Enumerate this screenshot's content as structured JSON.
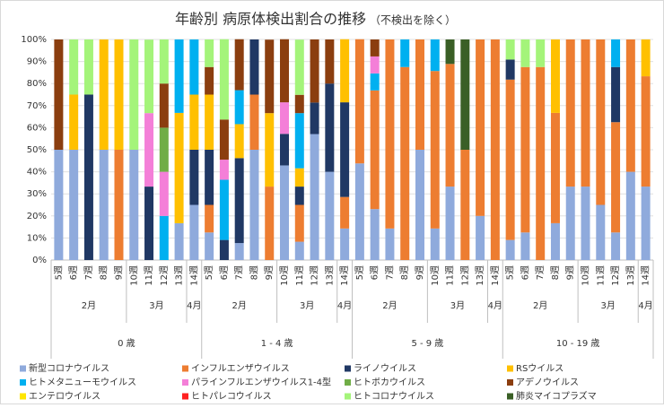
{
  "chart_data": {
    "type": "stacked-bar",
    "title": "年齢別 病原体検出割合の推移",
    "subtitle": "（不検出を除く）",
    "ylim": [
      0,
      100
    ],
    "yticks": [
      {
        "value": 0,
        "label": "0%"
      },
      {
        "value": 10,
        "label": "10%"
      },
      {
        "value": 20,
        "label": "20%"
      },
      {
        "value": 30,
        "label": "30%"
      },
      {
        "value": 40,
        "label": "40%"
      },
      {
        "value": 50,
        "label": "50%"
      },
      {
        "value": 60,
        "label": "60%"
      },
      {
        "value": 70,
        "label": "70%"
      },
      {
        "value": 80,
        "label": "80%"
      },
      {
        "value": 90,
        "label": "90%"
      },
      {
        "value": 100,
        "label": "100%"
      }
    ],
    "groups": [
      {
        "name": "0 歳",
        "months": [
          {
            "name": "2月",
            "weeks": [
              "5週",
              "6週",
              "7週",
              "8週",
              "9週"
            ]
          },
          {
            "name": "3月",
            "weeks": [
              "10週",
              "11週",
              "12週",
              "13週"
            ]
          },
          {
            "name": "4月",
            "weeks": [
              "14週"
            ]
          }
        ]
      },
      {
        "name": "1 - 4 歳",
        "months": [
          {
            "name": "2月",
            "weeks": [
              "5週",
              "6週",
              "7週",
              "8週",
              "9週"
            ]
          },
          {
            "name": "3月",
            "weeks": [
              "10週",
              "11週",
              "12週",
              "13週"
            ]
          },
          {
            "name": "4月",
            "weeks": [
              "14週"
            ]
          }
        ]
      },
      {
        "name": "5 - 9 歳",
        "months": [
          {
            "name": "2月",
            "weeks": [
              "5週",
              "6週",
              "7週",
              "8週",
              "9週"
            ]
          },
          {
            "name": "3月",
            "weeks": [
              "10週",
              "11週",
              "12週",
              "13週"
            ]
          },
          {
            "name": "4月",
            "weeks": [
              "14週"
            ]
          }
        ]
      },
      {
        "name": "10 - 19 歳",
        "months": [
          {
            "name": "2月",
            "weeks": [
              "5週",
              "6週",
              "7週",
              "8週",
              "9週"
            ]
          },
          {
            "name": "3月",
            "weeks": [
              "10週",
              "11週",
              "12週",
              "13週"
            ]
          },
          {
            "name": "4月",
            "weeks": [
              "14週"
            ]
          }
        ]
      }
    ],
    "series": [
      {
        "name": "新型コロナウイルス",
        "color": "#8faadc",
        "values": [
          50,
          50,
          0,
          50,
          0,
          50,
          0,
          0,
          16.7,
          25,
          12.5,
          0,
          7.7,
          50,
          0,
          42.9,
          8.3,
          57.1,
          40,
          14.3,
          43.8,
          23.1,
          14.3,
          0,
          50,
          14.3,
          33.3,
          0,
          20,
          0,
          9.1,
          12.5,
          0,
          16.7,
          33.3,
          33.3,
          25,
          12.5,
          40,
          33.3
        ]
      },
      {
        "name": "インフルエンザウイルス",
        "color": "#ed7d31",
        "values": [
          0,
          0,
          0,
          0,
          50,
          0,
          0,
          0,
          0,
          0,
          12.5,
          0,
          0,
          25,
          33.3,
          0,
          16.7,
          0,
          0,
          14.3,
          56.3,
          53.8,
          85.7,
          87.5,
          50,
          71.4,
          55.6,
          50,
          80,
          100,
          72.7,
          75,
          87.5,
          50,
          66.7,
          66.7,
          75,
          50,
          60,
          50
        ]
      },
      {
        "name": "ライノウイルス",
        "color": "#203864",
        "values": [
          0,
          0,
          75,
          0,
          0,
          0,
          33.3,
          0,
          0,
          25,
          25,
          9.1,
          38.5,
          25,
          0,
          14.3,
          8.3,
          14.3,
          40,
          42.9,
          0,
          0,
          0,
          0,
          0,
          0,
          0,
          0,
          0,
          0,
          9.1,
          0,
          0,
          0,
          0,
          0,
          0,
          25,
          0,
          0
        ]
      },
      {
        "name": "RSウイルス",
        "color": "#ffc000",
        "values": [
          0,
          25,
          0,
          50,
          50,
          0,
          0,
          0,
          50,
          25,
          25,
          0,
          15.4,
          0,
          33.3,
          0,
          8.3,
          0,
          0,
          28.6,
          0,
          0,
          0,
          0,
          0,
          0,
          0,
          0,
          0,
          0,
          0,
          0,
          0,
          33.3,
          0,
          0,
          0,
          0,
          0,
          16.7
        ]
      },
      {
        "name": "ヒトメタニューモウイルス",
        "color": "#00b0f0",
        "values": [
          0,
          0,
          0,
          0,
          0,
          0,
          0,
          20,
          33.3,
          25,
          0,
          27.3,
          15.4,
          0,
          0,
          0,
          25,
          0,
          0,
          0,
          0,
          7.7,
          0,
          12.5,
          0,
          14.3,
          0,
          0,
          0,
          0,
          0,
          0,
          0,
          0,
          0,
          0,
          0,
          12.5,
          0,
          0
        ]
      },
      {
        "name": "パラインフルエンザウイルス1-4型",
        "color": "#f47fd8",
        "values": [
          0,
          0,
          0,
          0,
          0,
          0,
          33.3,
          20,
          0,
          0,
          0,
          9.1,
          0,
          0,
          0,
          14.3,
          0,
          0,
          0,
          0,
          0,
          7.7,
          0,
          0,
          0,
          0,
          0,
          0,
          0,
          0,
          0,
          0,
          0,
          0,
          0,
          0,
          0,
          0,
          0,
          0
        ]
      },
      {
        "name": "ヒトボカウイルス",
        "color": "#70ad47",
        "values": [
          0,
          0,
          0,
          0,
          0,
          0,
          0,
          20,
          0,
          0,
          0,
          0,
          0,
          0,
          0,
          0,
          0,
          0,
          0,
          0,
          0,
          0,
          0,
          0,
          0,
          0,
          0,
          0,
          0,
          0,
          0,
          0,
          0,
          0,
          0,
          0,
          0,
          0,
          0,
          0
        ]
      },
      {
        "name": "アデノウイルス",
        "color": "#8b3e0f",
        "values": [
          50,
          0,
          0,
          0,
          0,
          0,
          0,
          20,
          0,
          0,
          12.5,
          18.2,
          23.1,
          0,
          33.3,
          28.6,
          8.3,
          28.6,
          20,
          0,
          0,
          7.7,
          0,
          0,
          0,
          0,
          0,
          0,
          0,
          0,
          0,
          0,
          0,
          0,
          0,
          0,
          0,
          0,
          0,
          0
        ]
      },
      {
        "name": "エンテロウイルス",
        "color": "#ffe600",
        "values": [
          0,
          0,
          0,
          0,
          0,
          0,
          0,
          0,
          0,
          0,
          0,
          0,
          0,
          0,
          0,
          0,
          0,
          0,
          0,
          0,
          0,
          0,
          0,
          0,
          0,
          0,
          0,
          0,
          0,
          0,
          0,
          0,
          0,
          0,
          0,
          0,
          0,
          0,
          0,
          0
        ]
      },
      {
        "name": "ヒトパレコウイルス",
        "color": "#ff2020",
        "values": [
          0,
          0,
          0,
          0,
          0,
          0,
          0,
          0,
          0,
          0,
          0,
          0,
          0,
          0,
          0,
          0,
          0,
          0,
          0,
          0,
          0,
          0,
          0,
          0,
          0,
          0,
          0,
          0,
          0,
          0,
          0,
          0,
          0,
          0,
          0,
          0,
          0,
          0,
          0,
          0
        ]
      },
      {
        "name": "ヒトコロナウイルス",
        "color": "#a4f47a",
        "values": [
          0,
          25,
          25,
          0,
          0,
          50,
          33.3,
          20,
          0,
          0,
          12.5,
          36.4,
          0,
          0,
          0,
          0,
          25,
          0,
          0,
          0,
          0,
          0,
          0,
          0,
          0,
          0,
          0,
          0,
          0,
          0,
          9.1,
          12.5,
          12.5,
          0,
          0,
          0,
          0,
          0,
          0,
          0
        ]
      },
      {
        "name": "肺炎マイコプラズマ",
        "color": "#3a5f26",
        "values": [
          0,
          0,
          0,
          0,
          0,
          0,
          0,
          0,
          0,
          0,
          0,
          0,
          0,
          0,
          0,
          0,
          0,
          0,
          0,
          0,
          0,
          0,
          0,
          0,
          0,
          0,
          11.1,
          50,
          0,
          0,
          0,
          0,
          0,
          0,
          0,
          0,
          0,
          0,
          0,
          0
        ]
      }
    ]
  }
}
